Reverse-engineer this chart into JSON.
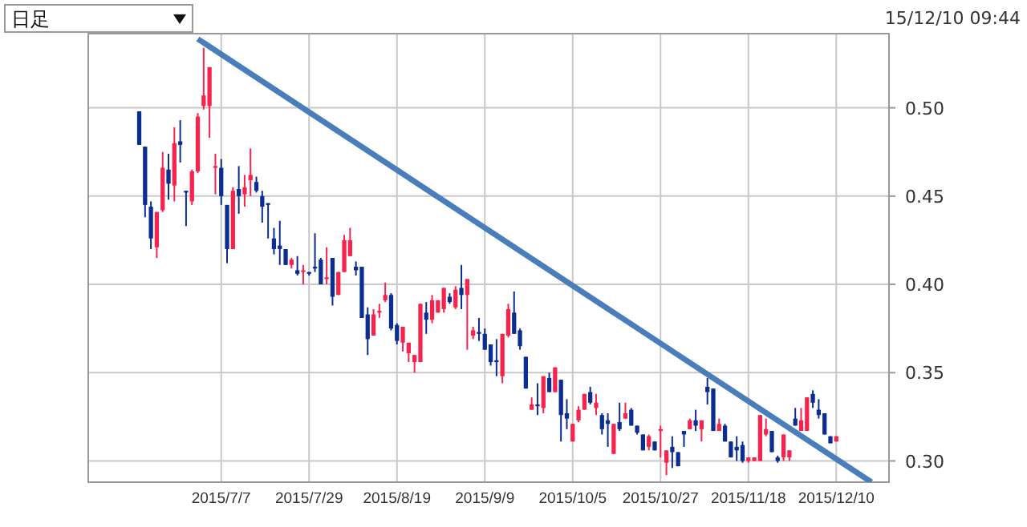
{
  "chart_data": {
    "type": "candlestick",
    "annotations": [
      "日足",
      "15/12/10 09:44"
    ],
    "categories": [
      null,
      null,
      null,
      null,
      null,
      null,
      null,
      null,
      null,
      null,
      null,
      null,
      null,
      null,
      "2015/7/7",
      null,
      null,
      null,
      null,
      null,
      null,
      null,
      null,
      null,
      null,
      null,
      null,
      null,
      null,
      "2015/7/29",
      null,
      null,
      null,
      null,
      null,
      null,
      null,
      null,
      null,
      null,
      null,
      null,
      null,
      null,
      "2015/8/19",
      null,
      null,
      null,
      null,
      null,
      null,
      null,
      null,
      null,
      null,
      null,
      null,
      null,
      null,
      "2015/9/9",
      null,
      null,
      null,
      null,
      null,
      null,
      null,
      null,
      null,
      null,
      null,
      null,
      null,
      null,
      "2015/10/5",
      null,
      null,
      null,
      null,
      null,
      null,
      null,
      null,
      null,
      null,
      null,
      null,
      null,
      null,
      "2015/10/27",
      null,
      null,
      null,
      null,
      null,
      null,
      null,
      null,
      null,
      null,
      null,
      null,
      null,
      null,
      "2015/11/18",
      null,
      null,
      null,
      null,
      null,
      null,
      null,
      null,
      null,
      null,
      null,
      null,
      null,
      null,
      "2015/12/10",
      null,
      null,
      null,
      null,
      null,
      null,
      null,
      null
    ],
    "ohlc": [
      [
        0.498,
        0.498,
        0.479,
        0.479
      ],
      [
        0.478,
        0.478,
        0.438,
        0.445
      ],
      [
        0.444,
        0.447,
        0.42,
        0.426
      ],
      [
        0.421,
        0.441,
        0.415,
        0.441
      ],
      [
        0.442,
        0.475,
        0.441,
        0.466
      ],
      [
        0.465,
        0.474,
        0.448,
        0.457
      ],
      [
        0.456,
        0.489,
        0.447,
        0.48
      ],
      [
        0.481,
        0.493,
        0.469,
        0.479
      ],
      [
        0.453,
        0.453,
        0.433,
        0.452
      ],
      [
        0.447,
        0.465,
        0.445,
        0.464
      ],
      [
        0.464,
        0.497,
        0.463,
        0.495
      ],
      [
        0.501,
        0.534,
        0.499,
        0.507
      ],
      [
        0.501,
        0.523,
        0.483,
        0.523
      ],
      [
        0.466,
        0.474,
        0.451,
        0.467
      ],
      [
        0.466,
        0.471,
        0.445,
        0.45
      ],
      [
        0.445,
        0.445,
        0.412,
        0.42
      ],
      [
        0.42,
        0.455,
        0.42,
        0.453
      ],
      [
        0.454,
        0.467,
        0.44,
        0.45
      ],
      [
        0.451,
        0.462,
        0.444,
        0.455
      ],
      [
        0.459,
        0.477,
        0.45,
        0.462
      ],
      [
        0.458,
        0.461,
        0.452,
        0.453
      ],
      [
        0.45,
        0.453,
        0.435,
        0.444
      ],
      [
        0.446,
        0.446,
        0.426,
        0.445
      ],
      [
        0.426,
        0.432,
        0.417,
        0.42
      ],
      [
        0.422,
        0.436,
        0.411,
        0.42
      ],
      [
        0.42,
        0.42,
        0.411,
        0.411
      ],
      [
        0.411,
        0.415,
        0.409,
        0.414
      ],
      [
        0.408,
        0.416,
        0.405,
        0.406
      ],
      [
        0.407,
        0.411,
        0.4,
        0.408
      ],
      [
        0.407,
        0.407,
        0.405,
        0.406
      ],
      [
        0.41,
        0.429,
        0.407,
        0.409
      ],
      [
        0.414,
        0.415,
        0.4,
        0.4
      ],
      [
        0.403,
        0.421,
        0.4,
        0.404
      ],
      [
        0.415,
        0.415,
        0.388,
        0.393
      ],
      [
        0.394,
        0.407,
        0.394,
        0.407
      ],
      [
        0.407,
        0.428,
        0.407,
        0.425
      ],
      [
        0.416,
        0.432,
        0.416,
        0.425
      ],
      [
        0.41,
        0.413,
        0.405,
        0.408
      ],
      [
        0.41,
        0.41,
        0.381,
        0.381
      ],
      [
        0.383,
        0.387,
        0.36,
        0.369
      ],
      [
        0.371,
        0.386,
        0.371,
        0.383
      ],
      [
        0.384,
        0.389,
        0.381,
        0.385
      ],
      [
        0.391,
        0.401,
        0.39,
        0.394
      ],
      [
        0.394,
        0.395,
        0.374,
        0.375
      ],
      [
        0.377,
        0.378,
        0.366,
        0.368
      ],
      [
        0.367,
        0.376,
        0.362,
        0.376
      ],
      [
        0.361,
        0.367,
        0.356,
        0.367
      ],
      [
        0.356,
        0.36,
        0.35,
        0.36
      ],
      [
        0.356,
        0.389,
        0.356,
        0.389
      ],
      [
        0.384,
        0.39,
        0.372,
        0.38
      ],
      [
        0.38,
        0.394,
        0.378,
        0.391
      ],
      [
        0.384,
        0.391,
        0.384,
        0.391
      ],
      [
        0.386,
        0.398,
        0.384,
        0.398
      ],
      [
        0.393,
        0.395,
        0.389,
        0.39
      ],
      [
        0.387,
        0.399,
        0.386,
        0.397
      ],
      [
        0.398,
        0.411,
        0.386,
        0.394
      ],
      [
        0.394,
        0.403,
        0.363,
        0.403
      ],
      [
        0.371,
        0.376,
        0.369,
        0.374
      ],
      [
        0.373,
        0.381,
        0.368,
        0.372
      ],
      [
        0.372,
        0.375,
        0.363,
        0.363
      ],
      [
        0.366,
        0.366,
        0.354,
        0.356
      ],
      [
        0.357,
        0.369,
        0.348,
        0.356
      ],
      [
        0.348,
        0.372,
        0.344,
        0.372
      ],
      [
        0.371,
        0.389,
        0.37,
        0.386
      ],
      [
        0.384,
        0.396,
        0.372,
        0.372
      ],
      [
        0.374,
        0.375,
        0.363,
        0.365
      ],
      [
        0.359,
        0.359,
        0.341,
        0.341
      ],
      [
        0.329,
        0.336,
        0.329,
        0.332
      ],
      [
        0.332,
        0.344,
        0.326,
        0.331
      ],
      [
        0.33,
        0.348,
        0.327,
        0.348
      ],
      [
        0.347,
        0.35,
        0.339,
        0.339
      ],
      [
        0.339,
        0.353,
        0.339,
        0.353
      ],
      [
        0.346,
        0.346,
        0.311,
        0.326
      ],
      [
        0.327,
        0.335,
        0.318,
        0.324
      ],
      [
        0.311,
        0.321,
        0.311,
        0.321
      ],
      [
        0.323,
        0.331,
        0.322,
        0.329
      ],
      [
        0.329,
        0.338,
        0.329,
        0.338
      ],
      [
        0.339,
        0.342,
        0.332,
        0.333
      ],
      [
        0.33,
        0.338,
        0.326,
        0.333
      ],
      [
        0.326,
        0.327,
        0.315,
        0.318
      ],
      [
        0.323,
        0.327,
        0.308,
        0.321
      ],
      [
        0.304,
        0.321,
        0.304,
        0.321
      ],
      [
        0.322,
        0.333,
        0.317,
        0.318
      ],
      [
        0.324,
        0.333,
        0.324,
        0.327
      ],
      [
        0.329,
        0.33,
        0.32,
        0.32
      ],
      [
        0.32,
        0.32,
        0.315,
        0.316
      ],
      [
        0.315,
        0.315,
        0.306,
        0.306
      ],
      [
        0.308,
        0.315,
        0.306,
        0.314
      ],
      [
        0.311,
        0.311,
        0.306,
        0.306
      ],
      [
        0.317,
        0.32,
        0.302,
        0.318
      ],
      [
        0.299,
        0.306,
        0.292,
        0.306
      ],
      [
        0.308,
        0.314,
        0.296,
        0.305
      ],
      [
        0.305,
        0.305,
        0.297,
        0.297
      ],
      [
        0.317,
        0.317,
        0.308,
        0.315
      ],
      [
        0.318,
        0.324,
        0.318,
        0.323
      ],
      [
        0.323,
        0.329,
        0.317,
        0.32
      ],
      [
        0.318,
        0.323,
        0.311,
        0.323
      ],
      [
        0.342,
        0.347,
        0.332,
        0.339
      ],
      [
        0.341,
        0.341,
        0.317,
        0.317
      ],
      [
        0.317,
        0.324,
        0.317,
        0.321
      ],
      [
        0.32,
        0.321,
        0.311,
        0.311
      ],
      [
        0.311,
        0.311,
        0.302,
        0.302
      ],
      [
        0.308,
        0.314,
        0.3,
        0.306
      ],
      [
        0.309,
        0.311,
        0.299,
        0.3
      ],
      [
        0.3,
        0.302,
        0.299,
        0.302
      ],
      [
        0.3,
        0.302,
        0.3,
        0.302
      ],
      [
        0.3,
        0.326,
        0.3,
        0.326
      ],
      [
        0.315,
        0.324,
        0.314,
        0.318
      ],
      [
        0.317,
        0.317,
        0.305,
        0.305
      ],
      [
        0.302,
        0.303,
        0.299,
        0.3
      ],
      [
        0.302,
        0.315,
        0.3,
        0.315
      ],
      [
        0.302,
        0.306,
        0.3,
        0.306
      ],
      [
        0.324,
        0.33,
        0.32,
        0.32
      ],
      [
        0.317,
        0.33,
        0.317,
        0.323
      ],
      [
        0.317,
        0.336,
        0.317,
        0.336
      ],
      [
        0.338,
        0.34,
        0.33,
        0.333
      ],
      [
        0.329,
        0.335,
        0.324,
        0.326
      ],
      [
        0.327,
        0.327,
        0.315,
        0.315
      ],
      [
        0.314,
        0.314,
        0.31,
        0.31
      ],
      [
        0.311,
        0.314,
        0.311,
        0.314
      ],
      null,
      null,
      null,
      null,
      null,
      null,
      null,
      null
    ],
    "colors": [
      "#0b2d91",
      "#0b2d91",
      "#0b2d91",
      "#f5234e",
      "#f5234e",
      "#0b2d91",
      "#f5234e",
      "#0b2d91",
      "#0b2d91",
      "#f5234e",
      "#f5234e",
      "#f5234e",
      "#f5234e",
      "#f5234e",
      "#0b2d91",
      "#0b2d91",
      "#f5234e",
      "#0b2d91",
      "#f5234e",
      "#f5234e",
      "#0b2d91",
      "#0b2d91",
      "#0b2d91",
      "#0b2d91",
      "#0b2d91",
      "#0b2d91",
      "#f5234e",
      "#0b2d91",
      "#f5234e",
      "#0b2d91",
      "#0b2d91",
      "#0b2d91",
      "#f5234e",
      "#0b2d91",
      "#f5234e",
      "#f5234e",
      "#f5234e",
      "#0b2d91",
      "#0b2d91",
      "#0b2d91",
      "#f5234e",
      "#f5234e",
      "#f5234e",
      "#0b2d91",
      "#0b2d91",
      "#f5234e",
      "#f5234e",
      "#f5234e",
      "#f5234e",
      "#0b2d91",
      "#f5234e",
      "#f5234e",
      "#f5234e",
      "#0b2d91",
      "#f5234e",
      "#0b2d91",
      "#f5234e",
      "#f5234e",
      "#0b2d91",
      "#0b2d91",
      "#0b2d91",
      "#0b2d91",
      "#f5234e",
      "#f5234e",
      "#0b2d91",
      "#0b2d91",
      "#0b2d91",
      "#f5234e",
      "#0b2d91",
      "#f5234e",
      "#0b2d91",
      "#f5234e",
      "#0b2d91",
      "#0b2d91",
      "#f5234e",
      "#f5234e",
      "#f5234e",
      "#0b2d91",
      "#f5234e",
      "#0b2d91",
      "#0b2d91",
      "#f5234e",
      "#0b2d91",
      "#f5234e",
      "#0b2d91",
      "#0b2d91",
      "#0b2d91",
      "#f5234e",
      "#0b2d91",
      "#f5234e",
      "#f5234e",
      "#0b2d91",
      "#0b2d91",
      "#0b2d91",
      "#f5234e",
      "#0b2d91",
      "#f5234e",
      "#0b2d91",
      "#0b2d91",
      "#f5234e",
      "#0b2d91",
      "#0b2d91",
      "#0b2d91",
      "#0b2d91",
      "#f5234e",
      "#f5234e",
      "#f5234e",
      "#f5234e",
      "#0b2d91",
      "#0b2d91",
      "#f5234e",
      "#f5234e",
      "#0b2d91",
      "#f5234e",
      "#f5234e",
      "#0b2d91",
      "#0b2d91",
      "#0b2d91",
      "#0b2d91",
      "#f5234e",
      null,
      null,
      null,
      null,
      null,
      null,
      null,
      null
    ],
    "series": [
      {
        "type": "line",
        "color": "#4a7ebb",
        "values": [
          null,
          null,
          null,
          null,
          null,
          null,
          null,
          null,
          null,
          null,
          0.539,
          null,
          null,
          null,
          null,
          null,
          null,
          null,
          null,
          null,
          null,
          null,
          null,
          null,
          null,
          null,
          null,
          null,
          null,
          null,
          null,
          null,
          null,
          null,
          null,
          null,
          null,
          null,
          null,
          null,
          null,
          null,
          null,
          null,
          null,
          null,
          null,
          null,
          null,
          null,
          null,
          null,
          null,
          null,
          null,
          null,
          null,
          null,
          null,
          null,
          null,
          null,
          null,
          null,
          null,
          null,
          null,
          null,
          null,
          null,
          null,
          null,
          null,
          null,
          null,
          null,
          null,
          null,
          null,
          null,
          null,
          null,
          null,
          null,
          null,
          null,
          null,
          null,
          null,
          null,
          null,
          null,
          null,
          null,
          null,
          null,
          null,
          null,
          null,
          null,
          null,
          null,
          null,
          null,
          null,
          null,
          null,
          null,
          null,
          null,
          null,
          null,
          null,
          null,
          null,
          null,
          null,
          null,
          null,
          null,
          null,
          null,
          null,
          null,
          null,
          0.288,
          null,
          null
        ]
      }
    ],
    "ylim": [
      0.288,
      0.542
    ],
    "yticks": [
      {
        "value": 0.3,
        "label": "0.30"
      },
      0.35,
      {
        "value": 0.4,
        "label": "0.40"
      },
      0.45,
      {
        "value": 0.5,
        "label": "0.50"
      }
    ],
    "grid": true
  }
}
